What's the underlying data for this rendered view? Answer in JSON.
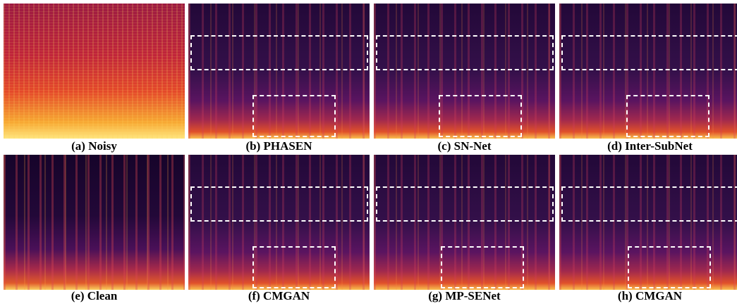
{
  "panels": [
    {
      "label": "(a) Noisy"
    },
    {
      "label": "(b) PHASEN"
    },
    {
      "label": "(c) SN-Net"
    },
    {
      "label": "(d) Inter-SubNet"
    },
    {
      "label": "(e) Clean"
    },
    {
      "label": "(f) CMGAN"
    },
    {
      "label": "(g) MP-SENet"
    },
    {
      "label": "(h) CMGAN"
    }
  ]
}
